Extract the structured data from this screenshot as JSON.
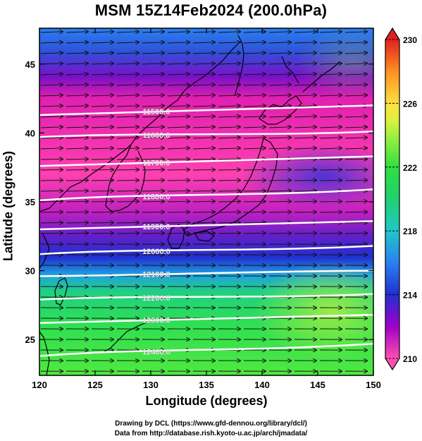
{
  "title": "MSM 15Z14Feb2024 (200.0hPa)",
  "xlabel": "Longitude (degrees)",
  "ylabel": "Latitude  (degrees)",
  "credits": [
    "Drawing by DCL (https://www.gfd-dennou.org/library/dcl/)",
    "Data from http://database.rish.kyoto-u.ac.jp/arch/jmadata/"
  ],
  "chart_data": {
    "type": "heatmap",
    "xlim": [
      120,
      150
    ],
    "ylim": [
      22.4,
      47.6
    ],
    "xticks": [
      120,
      125,
      130,
      135,
      140,
      145,
      150
    ],
    "yticks": [
      25,
      30,
      35,
      40,
      45
    ],
    "colorbar": {
      "range": [
        210,
        230
      ],
      "ticks": [
        210,
        214,
        218,
        222,
        226,
        230
      ],
      "colors": {
        "210": "#ff4fb0",
        "212": "#a000c8",
        "214": "#2030d0",
        "216": "#2a80f0",
        "218": "#20c8c8",
        "220": "#20d070",
        "222": "#30e040",
        "224": "#a0f040",
        "225": "#e0f040",
        "226": "#ffe040",
        "228": "#ff9020",
        "230": "#e02020"
      }
    },
    "contours": [
      {
        "label": "11500.0",
        "lat_west": 41.3,
        "lat_east": 42.0
      },
      {
        "label": "11600.0",
        "lat_west": 39.7,
        "lat_east": 40.1
      },
      {
        "label": "11700.0",
        "lat_west": 37.6,
        "lat_east": 38.3
      },
      {
        "label": "11800.0",
        "lat_west": 35.1,
        "lat_east": 35.9
      },
      {
        "label": "11900.0",
        "lat_west": 33.0,
        "lat_east": 33.6
      },
      {
        "label": "12000.0",
        "lat_west": 31.2,
        "lat_east": 31.8
      },
      {
        "label": "12100.0",
        "lat_west": 29.6,
        "lat_east": 30.0
      },
      {
        "label": "12200.0",
        "lat_west": 27.9,
        "lat_east": 28.3
      },
      {
        "label": "12300.0",
        "lat_west": 26.2,
        "lat_east": 26.8
      },
      {
        "label": "12400.0",
        "lat_west": 23.8,
        "lat_east": 24.7
      }
    ],
    "wind": {
      "direction": "westerly",
      "arrows": "uniform eastward"
    }
  }
}
